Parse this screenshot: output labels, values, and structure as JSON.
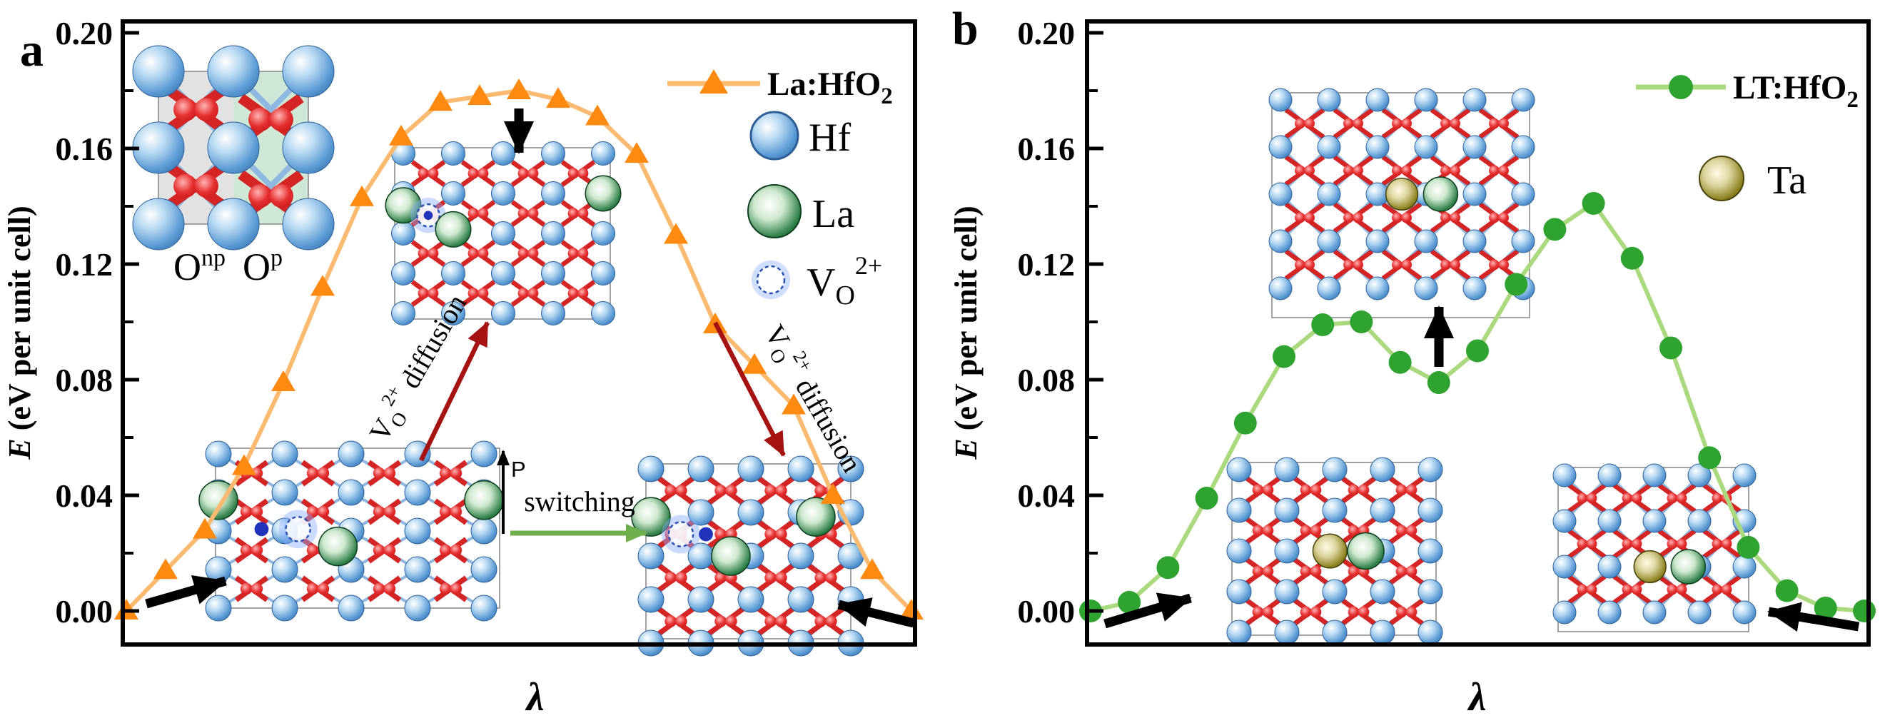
{
  "panels": [
    {
      "label": "a",
      "y_axis": {
        "title_italic": "E",
        "title_rest": " (eV per unit cell)"
      },
      "x_axis": {
        "title": "λ"
      },
      "legend": {
        "series": {
          "base": "La:HfO",
          "sub": "2"
        },
        "items": [
          {
            "label": "Hf"
          },
          {
            "label": "La"
          }
        ],
        "vacancy": {
          "base": "V",
          "sub": "O",
          "sup": "2+"
        }
      },
      "insets": {
        "o_labels": {
          "np_base": "O",
          "np_sup": "np",
          "p_base": "O",
          "p_sup": "p"
        },
        "polarization_label": "P"
      },
      "annotations": {
        "switching": "switching",
        "diffusion_left": {
          "base": "V",
          "sub": "O",
          "sup": "2+",
          "rest": " diffusion"
        },
        "diffusion_right": {
          "base": "V",
          "sub": "O",
          "sup": "2+",
          "rest": " diffusion"
        }
      }
    },
    {
      "label": "b",
      "y_axis": {
        "title_italic": "E",
        "title_rest": " (eV per unit cell)"
      },
      "x_axis": {
        "title": "λ"
      },
      "legend": {
        "series": {
          "base": "LT:HfO",
          "sub": "2"
        },
        "items": [
          {
            "label": "Ta"
          }
        ]
      }
    }
  ],
  "colors": {
    "la_hfo2_marker": "#FF8A12",
    "la_hfo2_line": "#FBBA70",
    "lt_hfo2_marker": "#2FA32F",
    "lt_hfo2_line": "#ABD97E",
    "hf_atom": "#5B9BD5",
    "la_atom": "#1E6B34",
    "ta_atom": "#7A7013",
    "o_atom": "#D42424",
    "vacancy_ring": "#3050B0",
    "diffusion_arrow": "#A51212",
    "switching_arrow": "#6FAF4B",
    "nonpolar_cell_shade": "#E2E2E2",
    "polar_cell_shade": "#CFE7D6"
  },
  "chart_data": [
    {
      "type": "line",
      "panel": "a",
      "xlabel": "λ",
      "ylabel": "E (eV per unit cell)",
      "xlim": [
        0,
        1
      ],
      "ylim": [
        -0.013,
        0.204
      ],
      "yticks": [
        0.0,
        0.04,
        0.08,
        0.12,
        0.16,
        0.2
      ],
      "ytick_labels": [
        "0.00",
        "0.04",
        "0.08",
        "0.12",
        "0.16",
        "0.20"
      ],
      "grid": false,
      "legend_position": "top-right",
      "series": [
        {
          "name": "La:HfO2",
          "marker": "triangle",
          "marker_color": "#FF8A12",
          "line_color": "#FBBA70",
          "x": [
            0,
            0.05,
            0.1,
            0.15,
            0.2,
            0.25,
            0.3,
            0.35,
            0.4,
            0.45,
            0.5,
            0.55,
            0.6,
            0.65,
            0.7,
            0.75,
            0.8,
            0.85,
            0.9,
            0.95,
            1
          ],
          "y": [
            0.0,
            0.014,
            0.028,
            0.05,
            0.079,
            0.112,
            0.143,
            0.164,
            0.176,
            0.178,
            0.18,
            0.177,
            0.171,
            0.158,
            0.13,
            0.099,
            0.085,
            0.071,
            0.04,
            0.014,
            0.0
          ]
        }
      ]
    },
    {
      "type": "line",
      "panel": "b",
      "xlabel": "λ",
      "ylabel": "E (eV per unit cell)",
      "xlim": [
        0,
        1
      ],
      "ylim": [
        -0.013,
        0.204
      ],
      "yticks": [
        0.0,
        0.04,
        0.08,
        0.12,
        0.16,
        0.2
      ],
      "ytick_labels": [
        "0.00",
        "0.04",
        "0.08",
        "0.12",
        "0.16",
        "0.20"
      ],
      "grid": false,
      "legend_position": "top-right",
      "series": [
        {
          "name": "LT:HfO2",
          "marker": "circle",
          "marker_color": "#2FA32F",
          "line_color": "#ABD97E",
          "x": [
            0,
            0.05,
            0.1,
            0.15,
            0.2,
            0.25,
            0.3,
            0.35,
            0.4,
            0.45,
            0.5,
            0.55,
            0.6,
            0.65,
            0.7,
            0.75,
            0.8,
            0.85,
            0.9,
            0.95,
            1
          ],
          "y": [
            0.0,
            0.003,
            0.015,
            0.039,
            0.065,
            0.088,
            0.099,
            0.1,
            0.086,
            0.079,
            0.09,
            0.113,
            0.132,
            0.141,
            0.122,
            0.091,
            0.053,
            0.022,
            0.007,
            0.001,
            0.0
          ]
        }
      ]
    }
  ]
}
